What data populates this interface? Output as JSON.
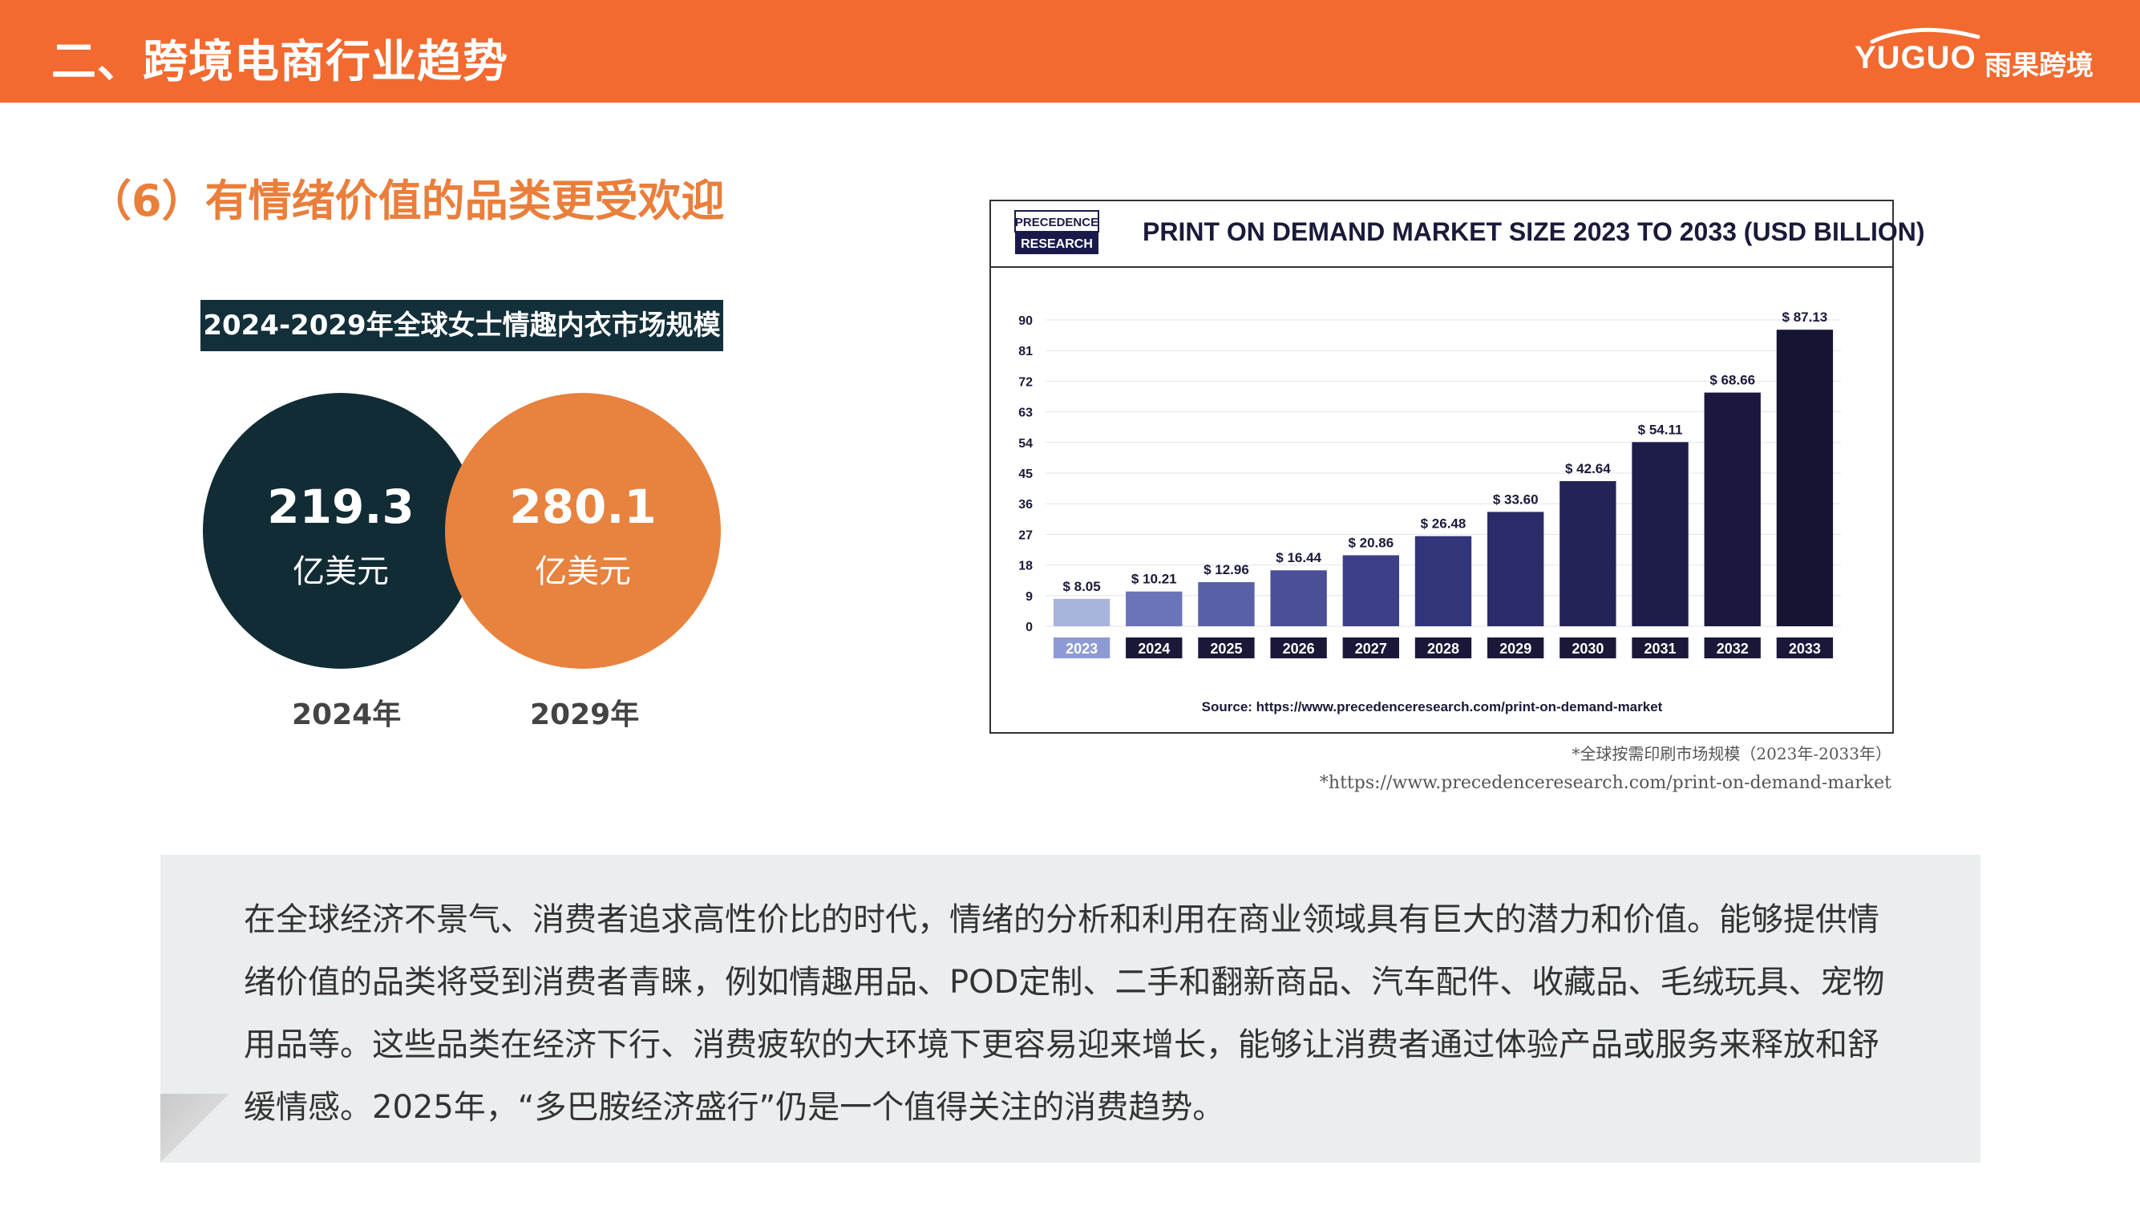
{
  "header": {
    "title": "二、跨境电商行业趋势",
    "logo_text": "YUGUO",
    "logo_cn": "雨果跨境"
  },
  "section": {
    "title": "（6）有情绪价值的品类更受欢迎"
  },
  "market": {
    "label": "2024-2029年全球女士情趣内衣市场规模",
    "items": [
      {
        "value": "219.3",
        "unit": "亿美元",
        "year": "2024年"
      },
      {
        "value": "280.1",
        "unit": "亿美元",
        "year": "2029年"
      }
    ]
  },
  "chart": {
    "brand_line1": "PRECEDENCE",
    "brand_line2": "RESEARCH",
    "source": "Source: https://www.precedenceresearch.com/print-on-demand-market"
  },
  "chart_data": {
    "type": "bar",
    "title": "PRINT ON DEMAND MARKET SIZE 2023 TO 2033 (USD BILLION)",
    "categories": [
      "2023",
      "2024",
      "2025",
      "2026",
      "2027",
      "2028",
      "2029",
      "2030",
      "2031",
      "2032",
      "2033"
    ],
    "values": [
      8.05,
      10.21,
      12.96,
      16.44,
      20.86,
      26.48,
      33.6,
      42.64,
      54.11,
      68.66,
      87.13
    ],
    "value_labels": [
      "$ 8.05",
      "$ 10.21",
      "$ 12.96",
      "$ 16.44",
      "$ 20.86",
      "$ 26.48",
      "$ 33.60",
      "$ 42.64",
      "$ 54.11",
      "$ 68.66",
      "$ 87.13"
    ],
    "yticks": [
      0,
      9,
      18,
      27,
      36,
      45,
      54,
      63,
      72,
      81,
      90
    ],
    "ylim": [
      0,
      90
    ],
    "grid": true,
    "colors": [
      "#a9b4dc",
      "#6b73b9",
      "#5860a8",
      "#4a4f98",
      "#3d3f88",
      "#33357a",
      "#2a2b68",
      "#232358",
      "#1e1d4a",
      "#1a183e",
      "#161433"
    ]
  },
  "captions": {
    "line1": "*全球按需印刷市场规模（2023年-2033年）",
    "line2": "*https://www.precedenceresearch.com/print-on-demand-market"
  },
  "body": {
    "paragraph": "在全球经济不景气、消费者追求高性价比的时代，情绪的分析和利用在商业领域具有巨大的潜力和价值。能够提供情绪价值的品类将受到消费者青睐，例如情趣用品、POD定制、二手和翻新商品、汽车配件、收藏品、毛绒玩具、宠物用品等。这些品类在经济下行、消费疲软的大环境下更容易迎来增长，能够让消费者通过体验产品或服务来释放和舒缓情感。2025年，“多巴胺经济盛行”仍是一个值得关注的消费趋势。"
  }
}
